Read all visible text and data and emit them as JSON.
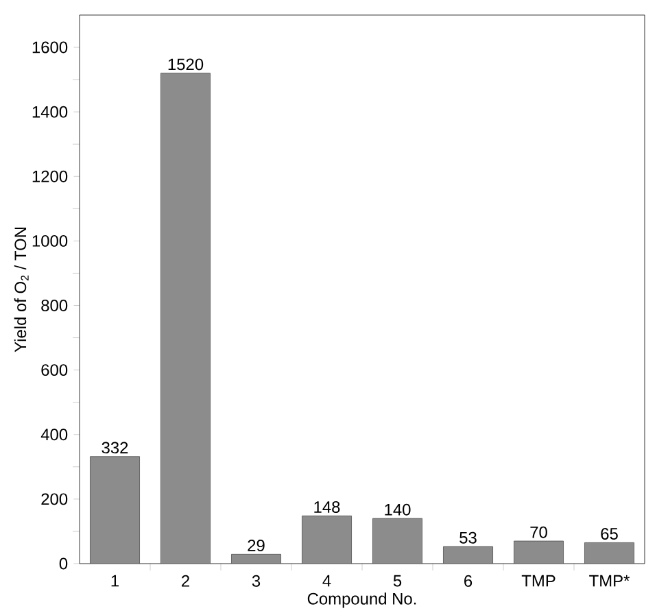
{
  "chart_data": {
    "type": "bar",
    "xlabel": "Compound No.",
    "ylabel": "Yield of O$_{2}$ / TON",
    "categories": [
      "1",
      "2",
      "3",
      "4",
      "5",
      "6",
      "TMP",
      "TMP*"
    ],
    "values": [
      332,
      1520,
      29,
      148,
      140,
      53,
      70,
      65
    ],
    "color": "#8c8c8c",
    "data_labels": true,
    "grid": false,
    "ylim": [
      0,
      1700
    ],
    "yticks": [
      0,
      200,
      400,
      600,
      800,
      1000,
      1200,
      1400,
      1600
    ]
  }
}
